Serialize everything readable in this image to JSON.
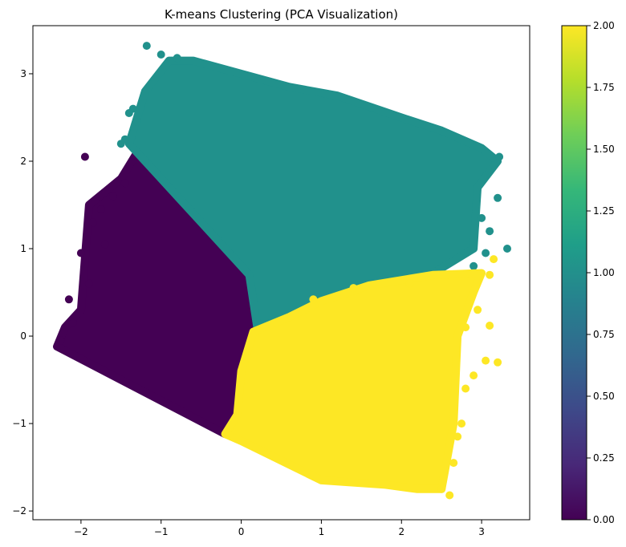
{
  "chart_data": {
    "type": "scatter",
    "title": "K-means Clustering (PCA Visualization)",
    "xlabel": "",
    "ylabel": "",
    "xlim": [
      -2.6,
      3.6
    ],
    "ylim": [
      -2.1,
      3.55
    ],
    "x_ticks": [
      -2,
      -1,
      0,
      1,
      2,
      3
    ],
    "y_ticks": [
      -2,
      -1,
      0,
      1,
      2,
      3
    ],
    "grid": false,
    "colorbar": {
      "range": [
        0.0,
        2.0
      ],
      "ticks": [
        0.0,
        0.25,
        0.5,
        0.75,
        1.0,
        1.25,
        1.5,
        1.75,
        2.0
      ],
      "tick_labels": [
        "0.00",
        "0.25",
        "0.50",
        "0.75",
        "1.00",
        "1.25",
        "1.50",
        "1.75",
        "2.00"
      ],
      "colormap": "viridis",
      "stops": [
        "#440154",
        "#482878",
        "#3e4989",
        "#31688e",
        "#26828e",
        "#1f9e89",
        "#35b779",
        "#6ece58",
        "#b5de2b",
        "#fde725"
      ]
    },
    "clusters": [
      {
        "label": 0,
        "color": "#440154",
        "outline": [
          [
            -2.3,
            -0.12
          ],
          [
            -2.2,
            0.1
          ],
          [
            -2.0,
            0.3
          ],
          [
            -1.9,
            1.5
          ],
          [
            -1.5,
            1.8
          ],
          [
            -1.3,
            2.1
          ],
          [
            -1.1,
            1.9
          ],
          [
            -0.5,
            1.3
          ],
          [
            0.1,
            0.7
          ],
          [
            0.2,
            0.1
          ],
          [
            0.0,
            -0.4
          ],
          [
            -0.05,
            -0.9
          ],
          [
            -0.2,
            -1.12
          ]
        ],
        "outliers": [
          [
            -2.15,
            0.42
          ],
          [
            -2.25,
            -0.05
          ],
          [
            -1.95,
            2.05
          ],
          [
            -1.85,
            1.3
          ],
          [
            -1.75,
            1.45
          ],
          [
            -1.6,
            1.6
          ],
          [
            -1.45,
            1.75
          ],
          [
            -2.0,
            0.95
          ],
          [
            -1.9,
            0.6
          ],
          [
            -1.7,
            1.05
          ],
          [
            -2.1,
            0.15
          ]
        ]
      },
      {
        "label": 1,
        "color": "#21918c",
        "outline": [
          [
            -1.4,
            2.2
          ],
          [
            -1.2,
            2.8
          ],
          [
            -0.9,
            3.15
          ],
          [
            -0.6,
            3.15
          ],
          [
            0.0,
            3.0
          ],
          [
            0.6,
            2.85
          ],
          [
            1.2,
            2.75
          ],
          [
            2.0,
            2.5
          ],
          [
            2.5,
            2.35
          ],
          [
            3.0,
            2.15
          ],
          [
            3.2,
            2.0
          ],
          [
            2.95,
            1.7
          ],
          [
            2.9,
            1.0
          ],
          [
            2.4,
            0.72
          ],
          [
            1.6,
            0.5
          ],
          [
            1.0,
            0.35
          ],
          [
            0.5,
            0.18
          ],
          [
            0.2,
            0.1
          ],
          [
            0.1,
            0.7
          ],
          [
            -0.5,
            1.3
          ],
          [
            -1.1,
            1.9
          ]
        ],
        "outliers": [
          [
            -1.18,
            3.32
          ],
          [
            -1.0,
            3.22
          ],
          [
            -0.8,
            3.18
          ],
          [
            -1.35,
            2.6
          ],
          [
            -1.4,
            2.55
          ],
          [
            -1.45,
            2.25
          ],
          [
            -1.5,
            2.2
          ],
          [
            -1.3,
            2.45
          ],
          [
            3.32,
            1.0
          ],
          [
            3.2,
            1.58
          ],
          [
            3.15,
            1.95
          ],
          [
            3.22,
            2.05
          ],
          [
            3.0,
            1.35
          ],
          [
            3.1,
            1.2
          ],
          [
            3.05,
            0.95
          ],
          [
            2.9,
            0.8
          ],
          [
            0.3,
            0.13
          ],
          [
            0.6,
            0.15
          ],
          [
            1.2,
            0.35
          ],
          [
            0.2,
            0.05
          ]
        ]
      },
      {
        "label": 2,
        "color": "#fde725",
        "outline": [
          [
            0.15,
            0.05
          ],
          [
            0.6,
            0.22
          ],
          [
            1.0,
            0.4
          ],
          [
            1.6,
            0.58
          ],
          [
            2.4,
            0.7
          ],
          [
            3.0,
            0.72
          ],
          [
            2.9,
            0.5
          ],
          [
            2.7,
            0.0
          ],
          [
            2.65,
            -1.0
          ],
          [
            2.55,
            -1.5
          ],
          [
            2.5,
            -1.75
          ],
          [
            2.2,
            -1.75
          ],
          [
            1.8,
            -1.7
          ],
          [
            1.0,
            -1.65
          ],
          [
            0.0,
            -1.2
          ],
          [
            -0.2,
            -1.12
          ],
          [
            -0.05,
            -0.9
          ],
          [
            0.0,
            -0.4
          ]
        ],
        "outliers": [
          [
            2.6,
            -1.82
          ],
          [
            2.5,
            -1.75
          ],
          [
            2.65,
            -1.45
          ],
          [
            2.7,
            -1.15
          ],
          [
            2.75,
            -1.0
          ],
          [
            2.8,
            -0.6
          ],
          [
            2.9,
            -0.45
          ],
          [
            3.05,
            -0.28
          ],
          [
            3.2,
            -0.3
          ],
          [
            3.1,
            0.12
          ],
          [
            3.15,
            0.88
          ],
          [
            3.1,
            0.7
          ],
          [
            2.95,
            0.3
          ],
          [
            2.8,
            0.1
          ],
          [
            2.1,
            0.6
          ],
          [
            1.4,
            0.55
          ],
          [
            0.9,
            0.42
          ]
        ]
      }
    ]
  }
}
